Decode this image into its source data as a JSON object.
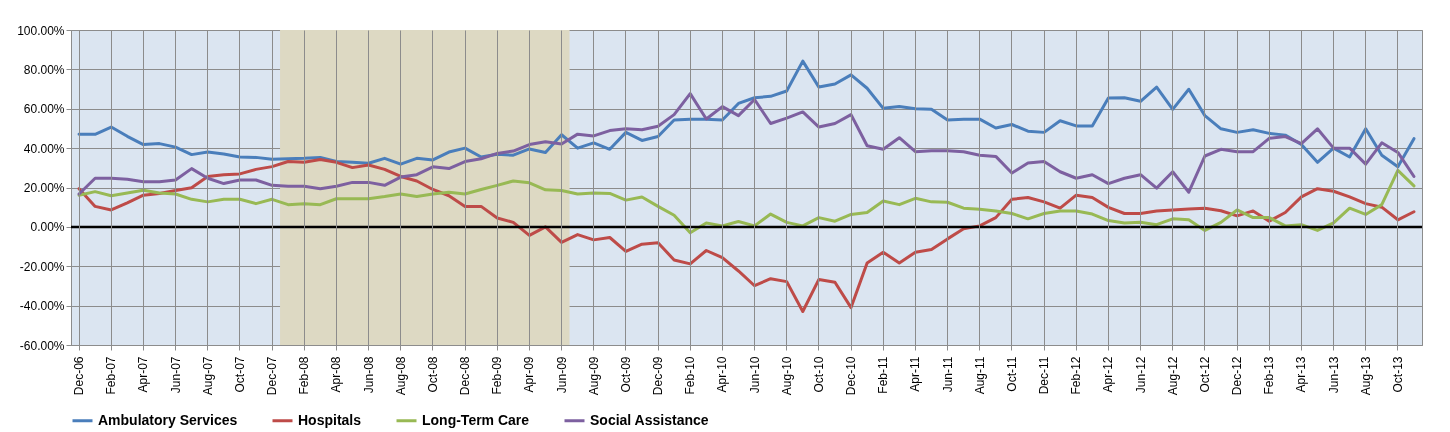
{
  "chart_data": {
    "type": "line",
    "categories": [
      "Dec-06",
      null,
      "Feb-07",
      null,
      "Apr-07",
      null,
      "Jun-07",
      null,
      "Aug-07",
      null,
      "Oct-07",
      null,
      "Dec-07",
      null,
      "Feb-08",
      null,
      "Apr-08",
      null,
      "Jun-08",
      null,
      "Aug-08",
      null,
      "Oct-08",
      null,
      "Dec-08",
      null,
      "Feb-09",
      null,
      "Apr-09",
      null,
      "Jun-09",
      null,
      "Aug-09",
      null,
      "Oct-09",
      null,
      "Dec-09",
      null,
      "Feb-10",
      null,
      "Apr-10",
      null,
      "Jun-10",
      null,
      "Aug-10",
      null,
      "Oct-10",
      null,
      "Dec-10",
      null,
      "Feb-11",
      null,
      "Apr-11",
      null,
      "Jun-11",
      null,
      "Aug-11",
      null,
      "Oct-11",
      null,
      "Dec-11",
      null,
      "Feb-12",
      null,
      "Apr-12",
      null,
      "Jun-12",
      null,
      "Aug-12",
      null,
      "Oct-12",
      null,
      "Dec-12",
      null,
      "Feb-13",
      null,
      "Apr-13",
      null,
      "Jun-13",
      null,
      "Aug-13",
      null,
      "Oct-13",
      null
    ],
    "series": [
      {
        "name": "Ambulatory Services",
        "color": "#4a7ebb",
        "values": [
          47.1,
          47,
          50.7,
          46,
          41.8,
          42.3,
          40.5,
          36.7,
          38,
          37,
          35.5,
          35.3,
          34.4,
          34.6,
          34.8,
          35.3,
          33.2,
          32.8,
          32.3,
          34.8,
          31.9,
          34.8,
          34,
          38,
          40,
          35.5,
          36.9,
          36.4,
          39.6,
          37.8,
          46.8,
          40,
          42.7,
          39.4,
          48,
          43.9,
          45.9,
          54.3,
          54.7,
          54.7,
          54.3,
          62.7,
          65.6,
          66.3,
          69,
          84.2,
          71,
          72.6,
          77.2,
          70.4,
          60.2,
          61.1,
          60,
          59.7,
          54.3,
          54.7,
          54.7,
          50.2,
          52,
          48.6,
          48,
          53.9,
          51.3,
          51.3,
          65.4,
          65.6,
          63.8,
          71,
          59.7,
          69.9,
          56.5,
          49.8,
          48,
          49.3,
          47.5,
          46.6,
          41.8,
          32.8,
          40,
          35.5,
          49.8,
          36.4,
          30.5,
          44.8
        ]
      },
      {
        "name": "Hospitals",
        "color": "#be4b48",
        "values": [
          19.4,
          10.4,
          8.6,
          12.2,
          16.1,
          17,
          18.5,
          19.9,
          25.6,
          26.5,
          26.9,
          29.2,
          30.6,
          33.2,
          32.8,
          34.2,
          32.8,
          30.1,
          31.4,
          29.2,
          25.6,
          23.3,
          19,
          15.8,
          10.4,
          10.4,
          4.5,
          2.3,
          -4.3,
          0,
          -7.9,
          -3.9,
          -6.6,
          -5.4,
          -12.5,
          -8.8,
          -8.1,
          -16.8,
          -18.8,
          -12,
          -15.6,
          -22.4,
          -29.9,
          -26.3,
          -27.8,
          -43,
          -26.7,
          -28.1,
          -41,
          -18.3,
          -12.9,
          -18.3,
          -12.9,
          -11.5,
          -6.1,
          -1,
          0.5,
          4.7,
          14,
          14.9,
          12.7,
          9.5,
          16.1,
          14.9,
          9.9,
          6.8,
          6.8,
          8.1,
          8.6,
          9.1,
          9.5,
          8.2,
          5.6,
          8.1,
          2.9,
          7.3,
          15.2,
          19.4,
          18.1,
          15.2,
          11.8,
          10,
          3.6,
          7.7
        ]
      },
      {
        "name": "Long-Term Care",
        "color": "#98b954",
        "values": [
          16.1,
          17.9,
          15.8,
          17.2,
          18.6,
          17.2,
          16.7,
          14,
          12.7,
          14,
          14,
          11.8,
          14,
          11.3,
          11.8,
          11.3,
          14.3,
          14.3,
          14.3,
          15.4,
          16.7,
          15.4,
          16.7,
          17.6,
          16.7,
          19,
          21.1,
          23.3,
          22.4,
          18.8,
          18.5,
          16.7,
          17.2,
          17,
          13.6,
          15.2,
          10.4,
          5.9,
          -3,
          2,
          0.5,
          2.7,
          0.5,
          6.5,
          2.3,
          0.5,
          4.7,
          2.9,
          6.3,
          7.3,
          13.1,
          11.3,
          14.5,
          12.7,
          12.5,
          9.5,
          9,
          8.1,
          6.8,
          4.1,
          6.8,
          8.1,
          8.1,
          6.5,
          3.2,
          2,
          2.3,
          1.1,
          4.1,
          3.6,
          -1.8,
          2.3,
          8.6,
          4.7,
          4.7,
          0.5,
          1.1,
          -1.8,
          2,
          9.5,
          6.3,
          11.3,
          28.7,
          20.8
        ]
      },
      {
        "name": "Social Assistance",
        "color": "#7d60a0",
        "values": [
          16.7,
          24.7,
          24.7,
          24.2,
          22.9,
          22.9,
          23.8,
          29.6,
          24.7,
          22,
          23.8,
          23.8,
          21.1,
          20.6,
          20.6,
          19.4,
          20.6,
          22.6,
          22.6,
          21.1,
          25.3,
          26.5,
          30.5,
          29.6,
          33.2,
          34.6,
          37.3,
          38.5,
          41.8,
          43.2,
          42.1,
          47.1,
          46.2,
          48.9,
          49.8,
          49.3,
          51.1,
          57,
          67.7,
          54.8,
          61.1,
          56.5,
          64.7,
          52.5,
          55.2,
          58.4,
          50.7,
          52.5,
          57,
          41.2,
          39.4,
          45.3,
          38.2,
          38.7,
          38.7,
          38.2,
          36.4,
          35.8,
          27.4,
          32.4,
          33.2,
          28,
          24.7,
          26.5,
          22,
          24.7,
          26.5,
          19.7,
          28,
          17.6,
          36,
          39.4,
          38.2,
          38.2,
          45,
          45.9,
          42.3,
          49.8,
          40,
          40,
          31.9,
          42.7,
          37.8,
          25.6
        ]
      }
    ],
    "ylim": [
      -60,
      100
    ],
    "yticks": [
      {
        "value": -60,
        "label": "-60.00%"
      },
      {
        "value": -40,
        "label": "-40.00%"
      },
      {
        "value": -20,
        "label": "-20.00%"
      },
      {
        "value": 0,
        "label": "0.00%"
      },
      {
        "value": 20,
        "label": "20.00%"
      },
      {
        "value": 40,
        "label": "40.00%"
      },
      {
        "value": 60,
        "label": "60.00%"
      },
      {
        "value": 80,
        "label": "80.00%"
      },
      {
        "value": 100,
        "label": "100.00%"
      }
    ],
    "grid": true,
    "legend": "bottom",
    "bands": [
      {
        "axis": "x",
        "from": "Dec-07",
        "to": "Jun-09",
        "color": "#ddd9c3"
      }
    ],
    "ref_lines": [
      {
        "axis": "y",
        "value": 0,
        "color": "#000000"
      }
    ]
  }
}
